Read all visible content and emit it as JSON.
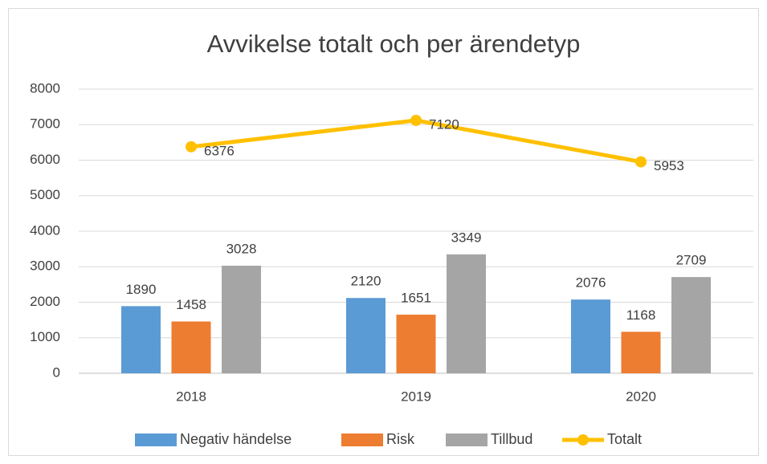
{
  "chart_data": {
    "type": "bar",
    "title": "Avvikelse totalt och per ärendetyp",
    "categories": [
      "2018",
      "2019",
      "2020"
    ],
    "series": [
      {
        "name": "Negativ händelse",
        "color": "#5b9bd5",
        "values": [
          1890,
          2120,
          2076
        ]
      },
      {
        "name": "Risk",
        "color": "#ed7d31",
        "values": [
          1458,
          1651,
          1168
        ]
      },
      {
        "name": "Tillbud",
        "color": "#a5a5a5",
        "values": [
          3028,
          3349,
          2709
        ]
      },
      {
        "name": "Totalt",
        "color": "#ffc000",
        "type": "line",
        "values": [
          6376,
          7120,
          5953
        ]
      }
    ],
    "ylim": [
      0,
      8000
    ],
    "yticks": [
      0,
      1000,
      2000,
      3000,
      4000,
      5000,
      6000,
      7000,
      8000
    ],
    "grid": true,
    "legend": "bottom",
    "data_labels": true
  }
}
